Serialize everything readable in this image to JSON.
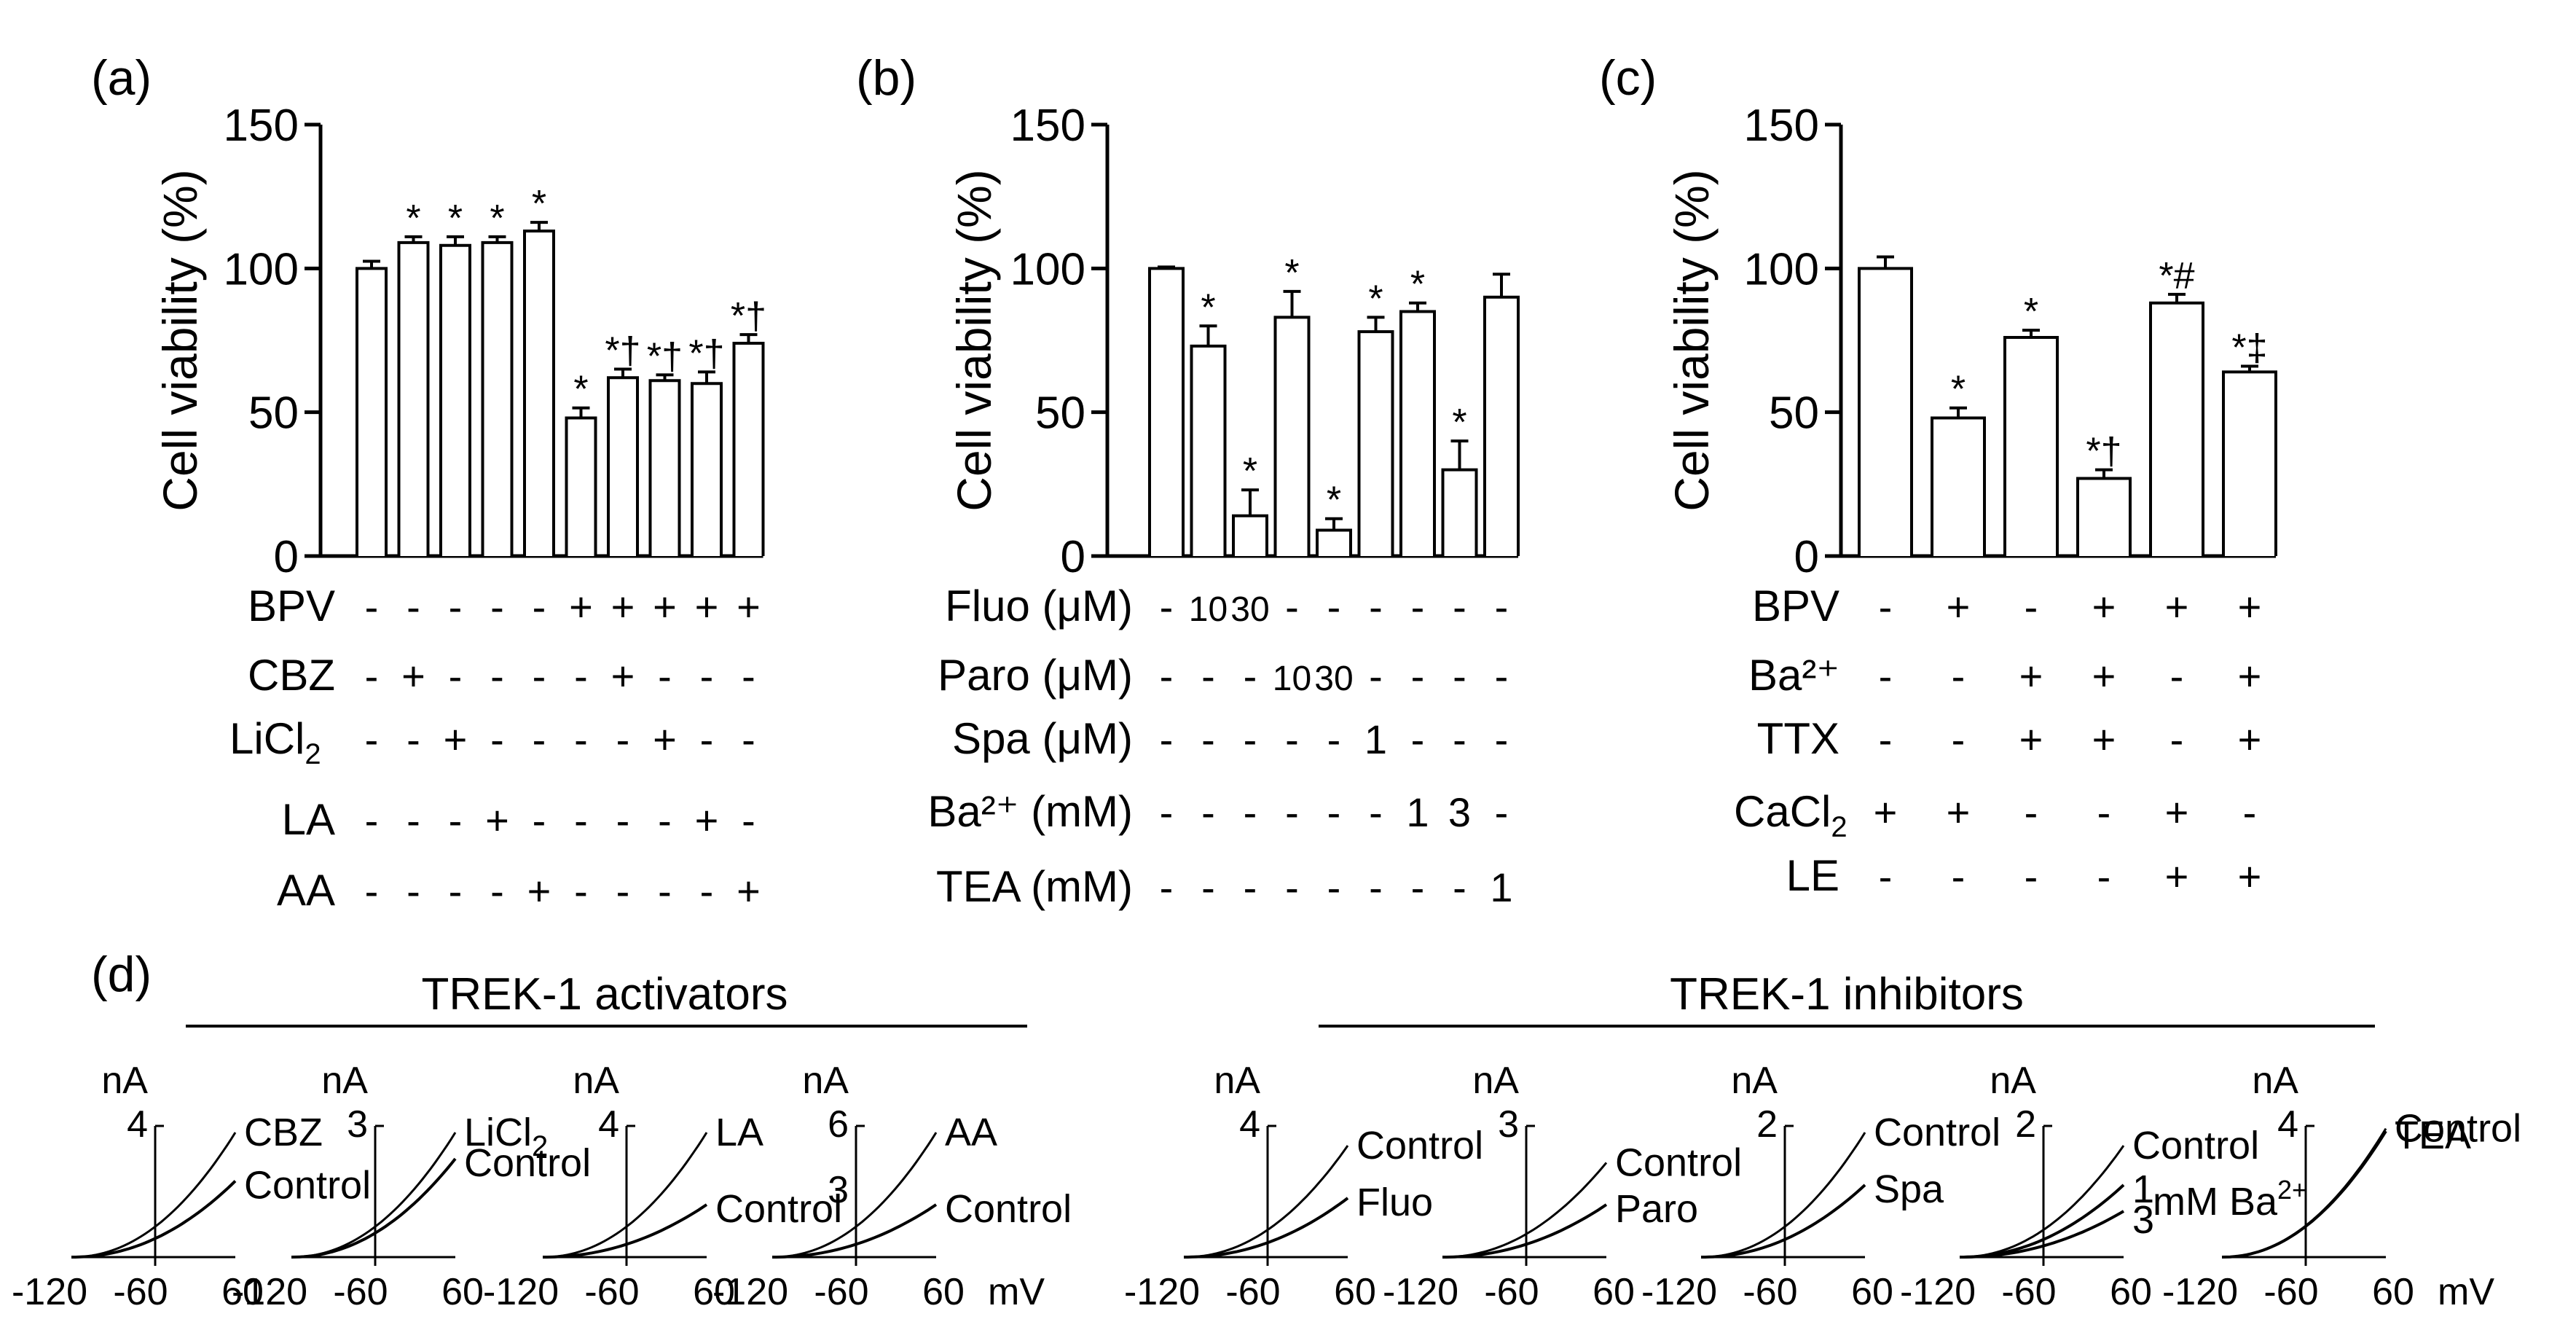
{
  "colors": {
    "ink": "#000000",
    "bar_fill": "#ffffff",
    "background": "#ffffff"
  },
  "chart_data": [
    {
      "id": "a",
      "panel_label": "(a)",
      "type": "bar",
      "ylabel": "Cell viability (%)",
      "ylim": [
        0,
        150
      ],
      "yticks": [
        "0",
        "50",
        "100",
        "150"
      ],
      "values": [
        100,
        109,
        108,
        109,
        113,
        48,
        62,
        61,
        60,
        74
      ],
      "errors": [
        2.5,
        2,
        3,
        2,
        3,
        3.5,
        3,
        2,
        4,
        3
      ],
      "annotations": [
        "",
        "*",
        "*",
        "*",
        "*",
        "*",
        "*†",
        "*†",
        "*†",
        "*†"
      ],
      "treatments": [
        {
          "label": "BPV",
          "sub": "",
          "marks": [
            "-",
            "-",
            "-",
            "-",
            "-",
            "+",
            "+",
            "+",
            "+",
            "+"
          ]
        },
        {
          "label": "CBZ",
          "sub": "",
          "marks": [
            "-",
            "+",
            "-",
            "-",
            "-",
            "-",
            "+",
            "-",
            "-",
            "-"
          ]
        },
        {
          "label": "LiCl",
          "sub": "2",
          "marks": [
            "-",
            "-",
            "+",
            "-",
            "-",
            "-",
            "-",
            "+",
            "-",
            "-"
          ]
        },
        {
          "label": "LA",
          "sub": "",
          "marks": [
            "-",
            "-",
            "-",
            "+",
            "-",
            "-",
            "-",
            "-",
            "+",
            "-"
          ]
        },
        {
          "label": "AA",
          "sub": "",
          "marks": [
            "-",
            "-",
            "-",
            "-",
            "+",
            "-",
            "-",
            "-",
            "-",
            "+"
          ]
        }
      ]
    },
    {
      "id": "b",
      "panel_label": "(b)",
      "type": "bar",
      "ylabel": "Cell viability (%)",
      "ylim": [
        0,
        150
      ],
      "yticks": [
        "0",
        "50",
        "100",
        "150"
      ],
      "values": [
        100,
        73,
        14,
        83,
        9,
        78,
        85,
        30,
        90
      ],
      "errors": [
        0.5,
        7,
        9,
        9,
        4,
        5,
        3,
        10,
        8
      ],
      "annotations": [
        "",
        "*",
        "*",
        "*",
        "*",
        "*",
        "*",
        "*",
        ""
      ],
      "treatments": [
        {
          "label": "Fluo (μM)",
          "sub": "",
          "marks": [
            "-",
            "10",
            "30",
            "-",
            "-",
            "-",
            "-",
            "-",
            "-"
          ]
        },
        {
          "label": "Paro (μM)",
          "sub": "",
          "marks": [
            "-",
            "-",
            "-",
            "10",
            "30",
            "-",
            "-",
            "-",
            "-"
          ]
        },
        {
          "label": "Spa (μM)",
          "sub": "",
          "marks": [
            "-",
            "-",
            "-",
            "-",
            "-",
            "1",
            "-",
            "-",
            "-"
          ]
        },
        {
          "label": "Ba²⁺ (mM)",
          "sub": "",
          "marks": [
            "-",
            "-",
            "-",
            "-",
            "-",
            "-",
            "1",
            "3",
            "-"
          ]
        },
        {
          "label": "TEA (mM)",
          "sub": "",
          "marks": [
            "-",
            "-",
            "-",
            "-",
            "-",
            "-",
            "-",
            "-",
            "1"
          ]
        }
      ]
    },
    {
      "id": "c",
      "panel_label": "(c)",
      "type": "bar",
      "ylabel": "Cell viability (%)",
      "ylim": [
        0,
        150
      ],
      "yticks": [
        "0",
        "50",
        "100",
        "150"
      ],
      "values": [
        100,
        48,
        76,
        27,
        88,
        64
      ],
      "errors": [
        4,
        3.5,
        2.5,
        3,
        3,
        2
      ],
      "annotations": [
        "",
        "*",
        "*",
        "*†",
        "*#",
        "*‡"
      ],
      "treatments": [
        {
          "label": "BPV",
          "sub": "",
          "marks": [
            "-",
            "+",
            "-",
            "+",
            "+",
            "+"
          ]
        },
        {
          "label": "Ba²⁺",
          "sub": "",
          "marks": [
            "-",
            "-",
            "+",
            "+",
            "-",
            "+"
          ]
        },
        {
          "label": "TTX",
          "sub": "",
          "marks": [
            "-",
            "-",
            "+",
            "+",
            "-",
            "+"
          ]
        },
        {
          "label": "CaCl",
          "sub": "2",
          "marks": [
            "+",
            "+",
            "-",
            "-",
            "+",
            "-"
          ]
        },
        {
          "label": "LE",
          "sub": "",
          "marks": [
            "-",
            "-",
            "-",
            "-",
            "+",
            "+"
          ]
        }
      ]
    },
    {
      "id": "d",
      "panel_label": "(d)",
      "type": "line",
      "group_titles": [
        "TREK-1 activators",
        "TREK-1 inhibitors"
      ],
      "x_range": [
        -120,
        60
      ],
      "x_ticks": [
        "-120",
        "-60",
        "60"
      ],
      "x_unit": "mV",
      "y_unit": "nA",
      "plots": [
        {
          "ymax_label": "4",
          "ymid_label": "",
          "curves": [
            {
              "label": "CBZ",
              "sub": "",
              "sup": "",
              "peak": 0.95
            },
            {
              "label": "Control",
              "sub": "",
              "sup": "",
              "peak": 0.58
            }
          ]
        },
        {
          "ymax_label": "3",
          "ymid_label": "",
          "curves": [
            {
              "label": "LiCl",
              "sub": "2",
              "sup": "",
              "peak": 0.95
            },
            {
              "label": "Control",
              "sub": "",
              "sup": "",
              "peak": 0.75
            }
          ]
        },
        {
          "ymax_label": "4",
          "ymid_label": "",
          "curves": [
            {
              "label": "LA",
              "sub": "",
              "sup": "",
              "peak": 0.95
            },
            {
              "label": "Control",
              "sub": "",
              "sup": "",
              "peak": 0.4
            }
          ]
        },
        {
          "ymax_label": "6",
          "ymid_label": "3",
          "curves": [
            {
              "label": "AA",
              "sub": "",
              "sup": "",
              "peak": 0.95
            },
            {
              "label": "Control",
              "sub": "",
              "sup": "",
              "peak": 0.4
            }
          ]
        },
        {
          "ymax_label": "4",
          "ymid_label": "",
          "curves": [
            {
              "label": "Control",
              "sub": "",
              "sup": "",
              "peak": 0.85
            },
            {
              "label": "Fluo",
              "sub": "",
              "sup": "",
              "peak": 0.45
            }
          ]
        },
        {
          "ymax_label": "3",
          "ymid_label": "",
          "curves": [
            {
              "label": "Control",
              "sub": "",
              "sup": "",
              "peak": 0.72
            },
            {
              "label": "Paro",
              "sub": "",
              "sup": "",
              "peak": 0.4
            }
          ]
        },
        {
          "ymax_label": "2",
          "ymid_label": "",
          "curves": [
            {
              "label": "Control",
              "sub": "",
              "sup": "",
              "peak": 0.95
            },
            {
              "label": "Spa",
              "sub": "",
              "sup": "",
              "peak": 0.55
            }
          ]
        },
        {
          "ymax_label": "2",
          "ymid_label": "",
          "curves": [
            {
              "label": "Control",
              "sub": "",
              "sup": "",
              "peak": 0.85
            },
            {
              "label": "1",
              "sub": "",
              "sup": "",
              "peak": 0.55
            },
            {
              "label": "3",
              "sub": "",
              "sup": "",
              "peak": 0.35
            }
          ],
          "extra_label": {
            "text": "mM Ba",
            "sup": "2+"
          }
        },
        {
          "ymax_label": "4",
          "ymid_label": "",
          "curves": [
            {
              "label": "Control",
              "sub": "",
              "sup": "",
              "peak": 0.98
            },
            {
              "label": "TEA",
              "sub": "",
              "sup": "",
              "peak": 0.96
            }
          ]
        }
      ]
    }
  ]
}
